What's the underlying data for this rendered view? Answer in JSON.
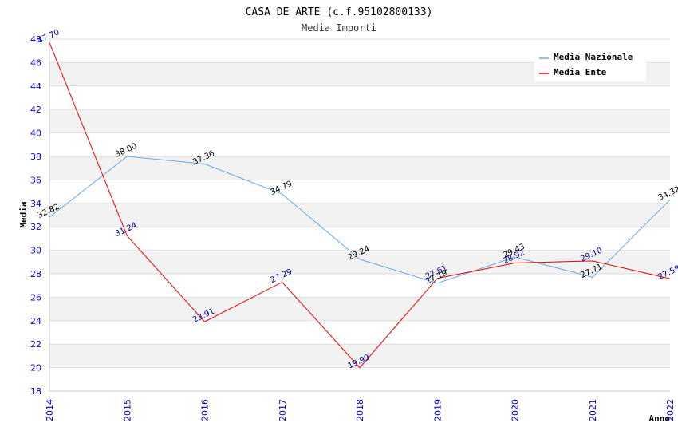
{
  "chart_data": {
    "type": "line",
    "title": "CASA DE ARTE (c.f.95102800133)",
    "subtitle": "Media Importi",
    "xlabel": "Anno",
    "ylabel": "Media",
    "categories": [
      "2014",
      "2015",
      "2016",
      "2017",
      "2018",
      "2019",
      "2020",
      "2021",
      "2022"
    ],
    "ylim": [
      18,
      48
    ],
    "yticks": [
      18,
      20,
      22,
      24,
      26,
      28,
      30,
      32,
      34,
      36,
      38,
      40,
      42,
      44,
      46,
      48
    ],
    "grid": true,
    "legend_position": "top-right",
    "series": [
      {
        "name": "Media Nazionale",
        "color": "#66aaee",
        "label_color": "#000000",
        "values": [
          32.82,
          38.0,
          37.36,
          34.79,
          29.24,
          27.19,
          29.43,
          27.71,
          34.32
        ],
        "labels": [
          "32.82",
          "38.00",
          "37.36",
          "34.79",
          "29.24",
          "27.19",
          "29.43",
          "27.71",
          "34.32"
        ]
      },
      {
        "name": "Media Ente",
        "color": "#ee0000",
        "label_color": "#000099",
        "values": [
          47.7,
          31.24,
          23.91,
          27.29,
          19.99,
          27.61,
          28.92,
          29.1,
          27.58
        ],
        "labels": [
          "47.70",
          "31.24",
          "23.91",
          "27.29",
          "19.99",
          "27.61",
          "28.92",
          "29.10",
          "27.58"
        ]
      }
    ]
  }
}
